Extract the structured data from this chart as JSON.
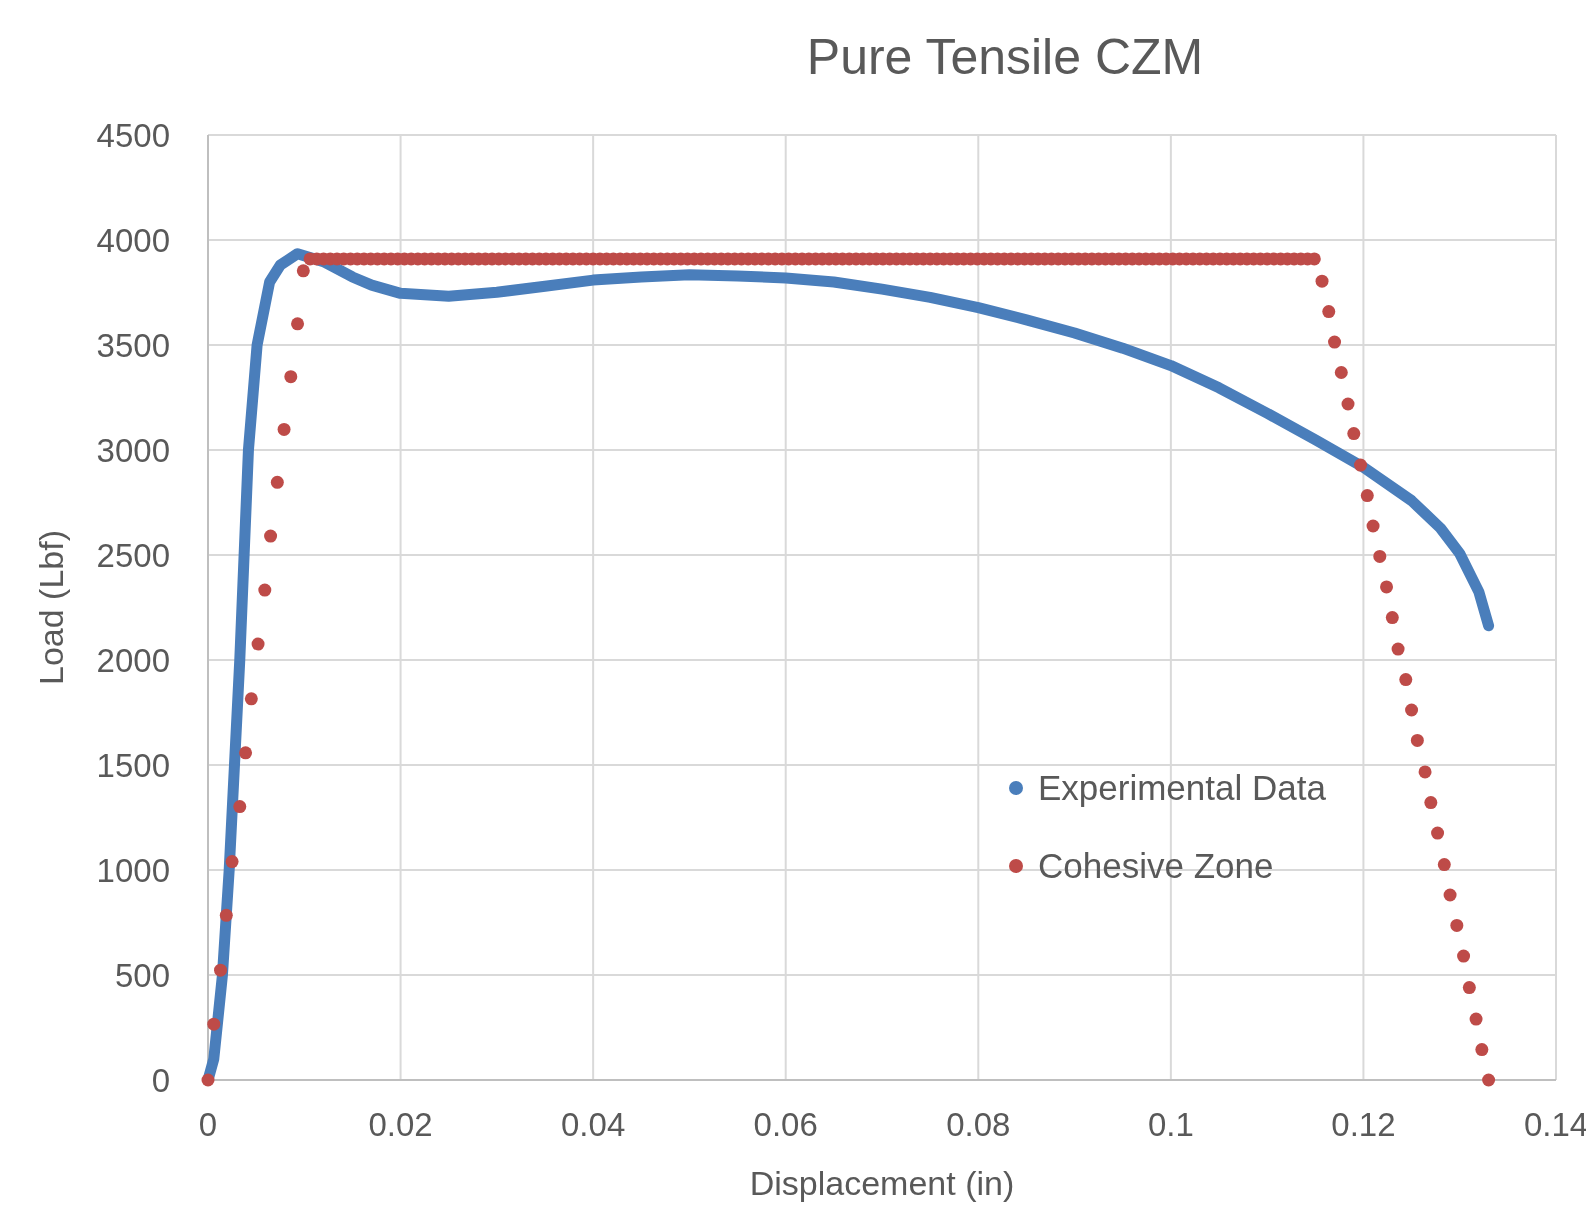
{
  "chart_data": {
    "type": "scatter",
    "title": "Pure Tensile CZM",
    "xlabel": "Displacement (in)",
    "ylabel": "Load (Lbf)",
    "xlim": [
      0,
      0.14
    ],
    "ylim": [
      0,
      4500
    ],
    "xticks": [
      0,
      0.02,
      0.04,
      0.06,
      0.08,
      0.1,
      0.12,
      0.14
    ],
    "yticks": [
      0,
      500,
      1000,
      1500,
      2000,
      2500,
      3000,
      3500,
      4000,
      4500
    ],
    "grid": true,
    "legend": "right",
    "series": [
      {
        "name": "Experimental Data",
        "type": "line",
        "marker": "none",
        "color": "#4a7ebb",
        "x": [
          0,
          0.0006,
          0.0015,
          0.0022,
          0.0033,
          0.0042,
          0.0051,
          0.0064,
          0.0075,
          0.0093,
          0.012,
          0.015,
          0.017,
          0.02,
          0.025,
          0.03,
          0.035,
          0.04,
          0.045,
          0.05,
          0.055,
          0.06,
          0.065,
          0.07,
          0.075,
          0.08,
          0.085,
          0.09,
          0.095,
          0.1,
          0.105,
          0.11,
          0.115,
          0.12,
          0.125,
          0.128,
          0.13,
          0.132,
          0.133
        ],
        "values": [
          0,
          100,
          500,
          1000,
          2000,
          3000,
          3500,
          3800,
          3880,
          3935,
          3897,
          3824,
          3785,
          3746,
          3732,
          3751,
          3780,
          3809,
          3824,
          3834,
          3829,
          3819,
          3800,
          3766,
          3727,
          3678,
          3620,
          3557,
          3485,
          3402,
          3296,
          3175,
          3049,
          2918,
          2759,
          2628,
          2507,
          2323,
          2163
        ]
      },
      {
        "name": "Cohesive Zone",
        "marker": "circle",
        "color": "#be4b48",
        "x": [
          0,
          0.0006,
          0.0013,
          0.0019,
          0.0025,
          0.0033,
          0.0039,
          0.0045,
          0.0052,
          0.0059,
          0.0065,
          0.0072,
          0.0079,
          0.0086,
          0.0093,
          0.0099,
          0.0106,
          0.0113,
          0.012,
          0.0127,
          0.0134,
          0.0141,
          0.0148,
          0.0155,
          0.0162,
          0.0169,
          0.0176,
          0.0183,
          0.019,
          0.0197,
          0.0204,
          0.0211,
          0.0218,
          0.0225,
          0.0232,
          0.0239,
          0.0246,
          0.0253,
          0.026,
          0.0267,
          0.0274,
          0.0281,
          0.0288,
          0.0295,
          0.0302,
          0.0309,
          0.0316,
          0.0323,
          0.033,
          0.0337,
          0.0344,
          0.0351,
          0.0358,
          0.0365,
          0.0372,
          0.0379,
          0.0386,
          0.0393,
          0.04,
          0.0407,
          0.0414,
          0.0421,
          0.0428,
          0.0435,
          0.0442,
          0.0449,
          0.0456,
          0.0463,
          0.047,
          0.0477,
          0.0484,
          0.0491,
          0.0498,
          0.0505,
          0.0512,
          0.0519,
          0.0526,
          0.0533,
          0.054,
          0.0547,
          0.0554,
          0.0561,
          0.0568,
          0.0575,
          0.0582,
          0.0589,
          0.0596,
          0.0603,
          0.061,
          0.0617,
          0.0624,
          0.0631,
          0.0638,
          0.0645,
          0.0652,
          0.0659,
          0.0666,
          0.0673,
          0.068,
          0.0687,
          0.0694,
          0.0701,
          0.0708,
          0.0715,
          0.0722,
          0.0729,
          0.0736,
          0.0743,
          0.075,
          0.0757,
          0.0764,
          0.0771,
          0.0778,
          0.0785,
          0.0792,
          0.0799,
          0.0806,
          0.0813,
          0.082,
          0.0827,
          0.0834,
          0.0841,
          0.0848,
          0.0855,
          0.0862,
          0.0869,
          0.0876,
          0.0883,
          0.089,
          0.0897,
          0.0904,
          0.0911,
          0.0918,
          0.0925,
          0.0932,
          0.0939,
          0.0946,
          0.0953,
          0.096,
          0.0967,
          0.0974,
          0.0981,
          0.0988,
          0.0995,
          0.1002,
          0.1009,
          0.1016,
          0.1023,
          0.103,
          0.1037,
          0.1044,
          0.1051,
          0.1058,
          0.1065,
          0.1072,
          0.1079,
          0.1086,
          0.1093,
          0.11,
          0.1107,
          0.1114,
          0.1121,
          0.1128,
          0.1135,
          0.1142,
          0.1149,
          0.1157,
          0.1164,
          0.117,
          0.1177,
          0.1184,
          0.119,
          0.1197,
          0.1204,
          0.121,
          0.1217,
          0.1224,
          0.123,
          0.1236,
          0.1244,
          0.125,
          0.1256,
          0.1264,
          0.127,
          0.1277,
          0.1284,
          0.129,
          0.1297,
          0.1304,
          0.131,
          0.1317,
          0.1323,
          0.133
        ],
        "values": [
          0,
          266,
          523,
          784,
          1040,
          1302,
          1558,
          1815,
          2076,
          2333,
          2590,
          2846,
          3098,
          3349,
          3601,
          3853,
          3910,
          3910,
          3910,
          3910,
          3910,
          3910,
          3910,
          3910,
          3910,
          3910,
          3910,
          3910,
          3910,
          3910,
          3910,
          3910,
          3910,
          3910,
          3910,
          3910,
          3910,
          3910,
          3910,
          3910,
          3910,
          3910,
          3910,
          3910,
          3910,
          3910,
          3910,
          3910,
          3910,
          3910,
          3910,
          3910,
          3910,
          3910,
          3910,
          3910,
          3910,
          3910,
          3910,
          3910,
          3910,
          3910,
          3910,
          3910,
          3910,
          3910,
          3910,
          3910,
          3910,
          3910,
          3910,
          3910,
          3910,
          3910,
          3910,
          3910,
          3910,
          3910,
          3910,
          3910,
          3910,
          3910,
          3910,
          3910,
          3910,
          3910,
          3910,
          3910,
          3910,
          3910,
          3910,
          3910,
          3910,
          3910,
          3910,
          3910,
          3910,
          3910,
          3910,
          3910,
          3910,
          3910,
          3910,
          3910,
          3910,
          3910,
          3910,
          3910,
          3910,
          3910,
          3910,
          3910,
          3910,
          3910,
          3910,
          3910,
          3910,
          3910,
          3910,
          3910,
          3910,
          3910,
          3910,
          3910,
          3910,
          3910,
          3910,
          3910,
          3910,
          3910,
          3910,
          3910,
          3910,
          3910,
          3910,
          3910,
          3910,
          3910,
          3910,
          3910,
          3910,
          3910,
          3910,
          3910,
          3910,
          3910,
          3910,
          3910,
          3910,
          3910,
          3910,
          3910,
          3910,
          3910,
          3910,
          3910,
          3910,
          3910,
          3910,
          3910,
          3910,
          3910,
          3910,
          3910,
          3910,
          3910,
          3804,
          3659,
          3514,
          3369,
          3219,
          3078,
          2928,
          2783,
          2638,
          2493,
          2348,
          2202,
          2052,
          1907,
          1762,
          1617,
          1467,
          1321,
          1176,
          1026,
          881,
          736,
          590,
          440,
          290,
          145,
          0
        ]
      }
    ]
  }
}
